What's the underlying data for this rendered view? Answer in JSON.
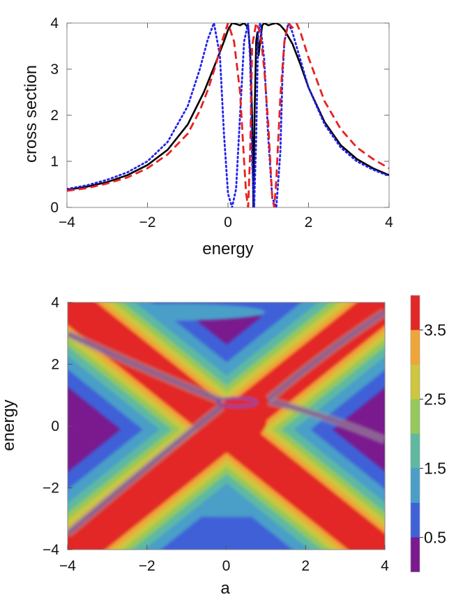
{
  "chart_data": [
    {
      "type": "line",
      "title": "",
      "xlabel": "energy",
      "ylabel": "cross section",
      "xlim": [
        -4,
        4
      ],
      "ylim": [
        0,
        4
      ],
      "xticks": [
        -4,
        -2,
        0,
        2,
        4
      ],
      "yticks": [
        0,
        1,
        2,
        3,
        4
      ],
      "xtick_labels": [
        "−4",
        "−2",
        "0",
        "2",
        "4"
      ],
      "ytick_labels": [
        "0",
        "1",
        "2",
        "3",
        "4"
      ],
      "series": [
        {
          "name": "solid",
          "color": "#000000",
          "style": "solid",
          "x": [
            -4.0,
            -3.5,
            -3.0,
            -2.5,
            -2.0,
            -1.5,
            -1.0,
            -0.6,
            -0.3,
            -0.1,
            0.0,
            0.1,
            0.2,
            0.3,
            0.4,
            0.5,
            0.55,
            0.6,
            0.63,
            0.66,
            0.7,
            0.73,
            0.76,
            0.8,
            0.85,
            0.9,
            1.0,
            1.1,
            1.2,
            1.3,
            1.4,
            1.6,
            1.8,
            2.0,
            2.4,
            2.8,
            3.2,
            3.6,
            4.0
          ],
          "y": [
            0.38,
            0.45,
            0.55,
            0.7,
            0.92,
            1.25,
            1.8,
            2.5,
            3.15,
            3.6,
            3.85,
            4.0,
            3.98,
            3.95,
            4.0,
            3.9,
            3.4,
            2.0,
            0.0,
            2.0,
            3.6,
            3.8,
            3.3,
            3.6,
            3.95,
            4.0,
            3.95,
            3.98,
            4.0,
            3.95,
            3.85,
            3.55,
            3.1,
            2.6,
            1.85,
            1.35,
            1.05,
            0.85,
            0.7
          ]
        },
        {
          "name": "dotted",
          "color": "#2222ee",
          "style": "dotted",
          "x": [
            -4.0,
            -3.5,
            -3.0,
            -2.5,
            -2.0,
            -1.5,
            -1.0,
            -0.7,
            -0.5,
            -0.35,
            -0.2,
            -0.1,
            0.0,
            0.1,
            0.2,
            0.3,
            0.4,
            0.5,
            0.55,
            0.6,
            0.65,
            0.7,
            0.75,
            0.8,
            0.9,
            1.0,
            1.1,
            1.2,
            1.3,
            1.35,
            1.4,
            1.5,
            1.6,
            1.8,
            2.0,
            2.4,
            2.8,
            3.2,
            3.6,
            4.0
          ],
          "y": [
            0.4,
            0.48,
            0.6,
            0.76,
            1.0,
            1.42,
            2.2,
            3.0,
            3.65,
            4.0,
            3.3,
            1.6,
            0.3,
            0.0,
            0.4,
            2.0,
            3.6,
            4.0,
            3.2,
            1.0,
            0.0,
            1.5,
            3.8,
            4.0,
            3.2,
            1.5,
            0.2,
            0.0,
            1.2,
            2.8,
            3.6,
            4.0,
            3.8,
            3.2,
            2.6,
            1.8,
            1.3,
            1.0,
            0.82,
            0.68
          ]
        },
        {
          "name": "dashed",
          "color": "#e82020",
          "style": "dashed",
          "x": [
            -4.0,
            -3.5,
            -3.0,
            -2.5,
            -2.0,
            -1.5,
            -1.0,
            -0.7,
            -0.5,
            -0.3,
            -0.15,
            0.0,
            0.15,
            0.3,
            0.4,
            0.45,
            0.5,
            0.55,
            0.6,
            0.7,
            0.8,
            0.9,
            1.0,
            1.05,
            1.1,
            1.15,
            1.2,
            1.3,
            1.4,
            1.5,
            1.6,
            1.7,
            1.8,
            2.0,
            2.4,
            2.8,
            3.2,
            3.6,
            4.0
          ],
          "y": [
            0.36,
            0.42,
            0.52,
            0.65,
            0.85,
            1.15,
            1.6,
            2.1,
            2.55,
            3.1,
            3.6,
            4.0,
            3.6,
            2.5,
            1.0,
            0.3,
            0.0,
            1.2,
            3.5,
            4.0,
            3.8,
            3.0,
            1.8,
            1.0,
            0.2,
            0.0,
            0.6,
            2.4,
            3.6,
            4.0,
            3.9,
            4.0,
            3.8,
            3.25,
            2.3,
            1.7,
            1.3,
            1.05,
            0.85
          ]
        }
      ]
    },
    {
      "type": "heatmap",
      "title": "",
      "xlabel": "a",
      "ylabel": "energy",
      "xlim": [
        -4,
        4
      ],
      "ylim": [
        -4,
        4
      ],
      "xticks": [
        -4,
        -2,
        0,
        2,
        4
      ],
      "yticks": [
        -4,
        -2,
        0,
        2,
        4
      ],
      "xtick_labels": [
        "−4",
        "−2",
        "0",
        "2",
        "4"
      ],
      "ytick_labels": [
        "−4",
        "−2",
        "0",
        "2",
        "4"
      ],
      "colorbar": {
        "min": 0,
        "max": 4,
        "levels": [
          0,
          0.5,
          1,
          1.5,
          2,
          2.5,
          3,
          3.5,
          4
        ],
        "colors": [
          "#7b1a8e",
          "#3f61d8",
          "#4a9fc8",
          "#5fb9a0",
          "#96c85a",
          "#cdc63e",
          "#f0a538",
          "#e32727"
        ],
        "tick_values": [
          0.5,
          1.5,
          2.5,
          3.5
        ],
        "tick_labels": [
          "0.5",
          "1.5",
          "2.5",
          "3.5"
        ]
      }
    }
  ]
}
